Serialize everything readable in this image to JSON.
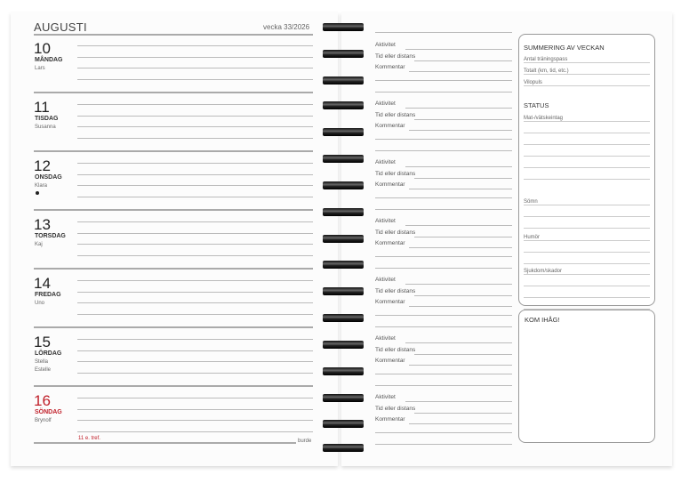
{
  "header": {
    "month": "AUGUSTI",
    "week": "vecka 33/2026"
  },
  "days": [
    {
      "num": "10",
      "name": "MÅNDAG",
      "names": [
        "Lars"
      ]
    },
    {
      "num": "11",
      "name": "TISDAG",
      "names": [
        "Susanna"
      ]
    },
    {
      "num": "12",
      "name": "ONSDAG",
      "names": [
        "Klara"
      ],
      "moon": true
    },
    {
      "num": "13",
      "name": "TORSDAG",
      "names": [
        "Kaj"
      ]
    },
    {
      "num": "14",
      "name": "FREDAG",
      "names": [
        "Uno"
      ]
    },
    {
      "num": "15",
      "name": "LÖRDAG",
      "names": [
        "Stella",
        "Estelle"
      ]
    },
    {
      "num": "16",
      "name": "SÖNDAG",
      "names": [
        "Brynolf"
      ],
      "holiday": true
    }
  ],
  "footer": {
    "note": "11 e. tref.",
    "brand": "burde"
  },
  "training_labels": [
    "Aktivitet",
    "Tid eller distans",
    "Kommentar"
  ],
  "summary": {
    "title": "SUMMERING AV VECKAN",
    "fields": [
      "Antal träningspass",
      "Totalt (km, tid, etc.)",
      "Vilopuls"
    ]
  },
  "status": {
    "title": "STATUS",
    "fields": [
      "Mat-/vätskeintag",
      "Sömn",
      "Humör",
      "Sjukdom/skador"
    ]
  },
  "remember": {
    "title": "KOM IHÅG!"
  },
  "colors": {
    "holiday": "#c0202a"
  }
}
